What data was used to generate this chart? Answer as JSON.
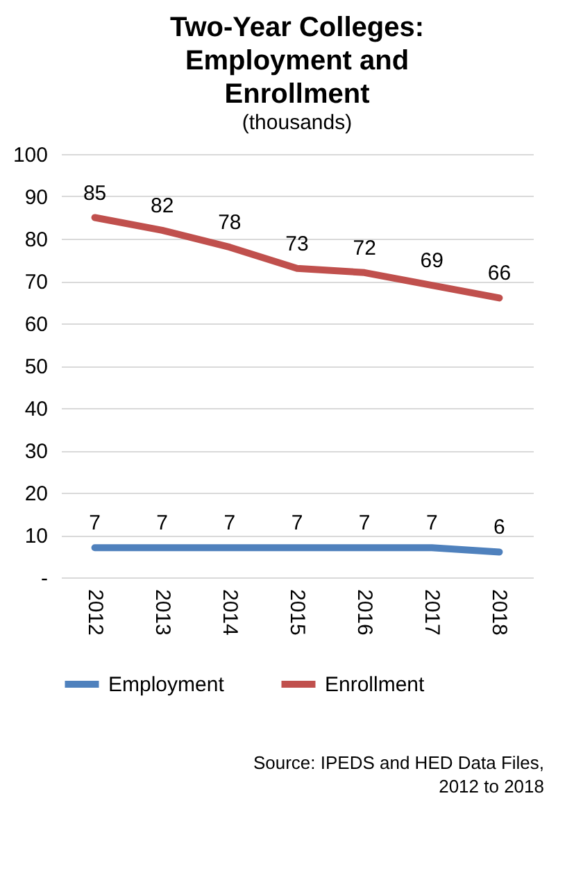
{
  "chart_data": {
    "type": "line",
    "title": "Two-Year Colleges: Employment and Enrollment",
    "subtitle": "(thousands)",
    "categories": [
      "2012",
      "2013",
      "2014",
      "2015",
      "2016",
      "2017",
      "2018"
    ],
    "series": [
      {
        "name": "Employment",
        "color": "#4f81bd",
        "values": [
          7,
          7,
          7,
          7,
          7,
          7,
          6
        ]
      },
      {
        "name": "Enrollment",
        "color": "#c0504d",
        "values": [
          85,
          82,
          78,
          73,
          72,
          69,
          66
        ]
      }
    ],
    "ylim": [
      0,
      100
    ],
    "yticks": [
      {
        "value": 0,
        "label": "-"
      },
      10,
      20,
      30,
      40,
      50,
      60,
      70,
      80,
      90,
      100
    ],
    "grid": "y",
    "legend": "bottom",
    "marker": "none",
    "line_style": "solid",
    "data_labels": true,
    "annotations": [
      "Source: IPEDS and HED Data Files, 2012 to 2018"
    ]
  }
}
